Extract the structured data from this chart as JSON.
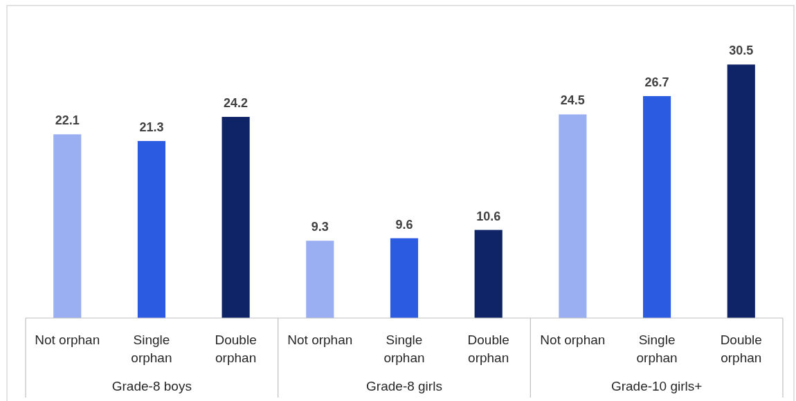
{
  "chart_data": {
    "type": "bar",
    "categories": [
      "Not orphan",
      "Single orphan",
      "Double orphan",
      "Not orphan",
      "Single orphan",
      "Double orphan",
      "Not orphan",
      "Single orphan",
      "Double orphan"
    ],
    "values": [
      22.1,
      21.3,
      24.2,
      9.3,
      9.6,
      10.6,
      24.5,
      26.7,
      30.5
    ],
    "colors": [
      "#9aaef2",
      "#2b5be0",
      "#0f2466",
      "#9aaef2",
      "#2b5be0",
      "#0f2466",
      "#9aaef2",
      "#2b5be0",
      "#0f2466"
    ],
    "data_labels": true,
    "annotations": [
      "Grade-8 boys",
      "Grade-8 girls",
      "Grade-10 girls+"
    ]
  }
}
